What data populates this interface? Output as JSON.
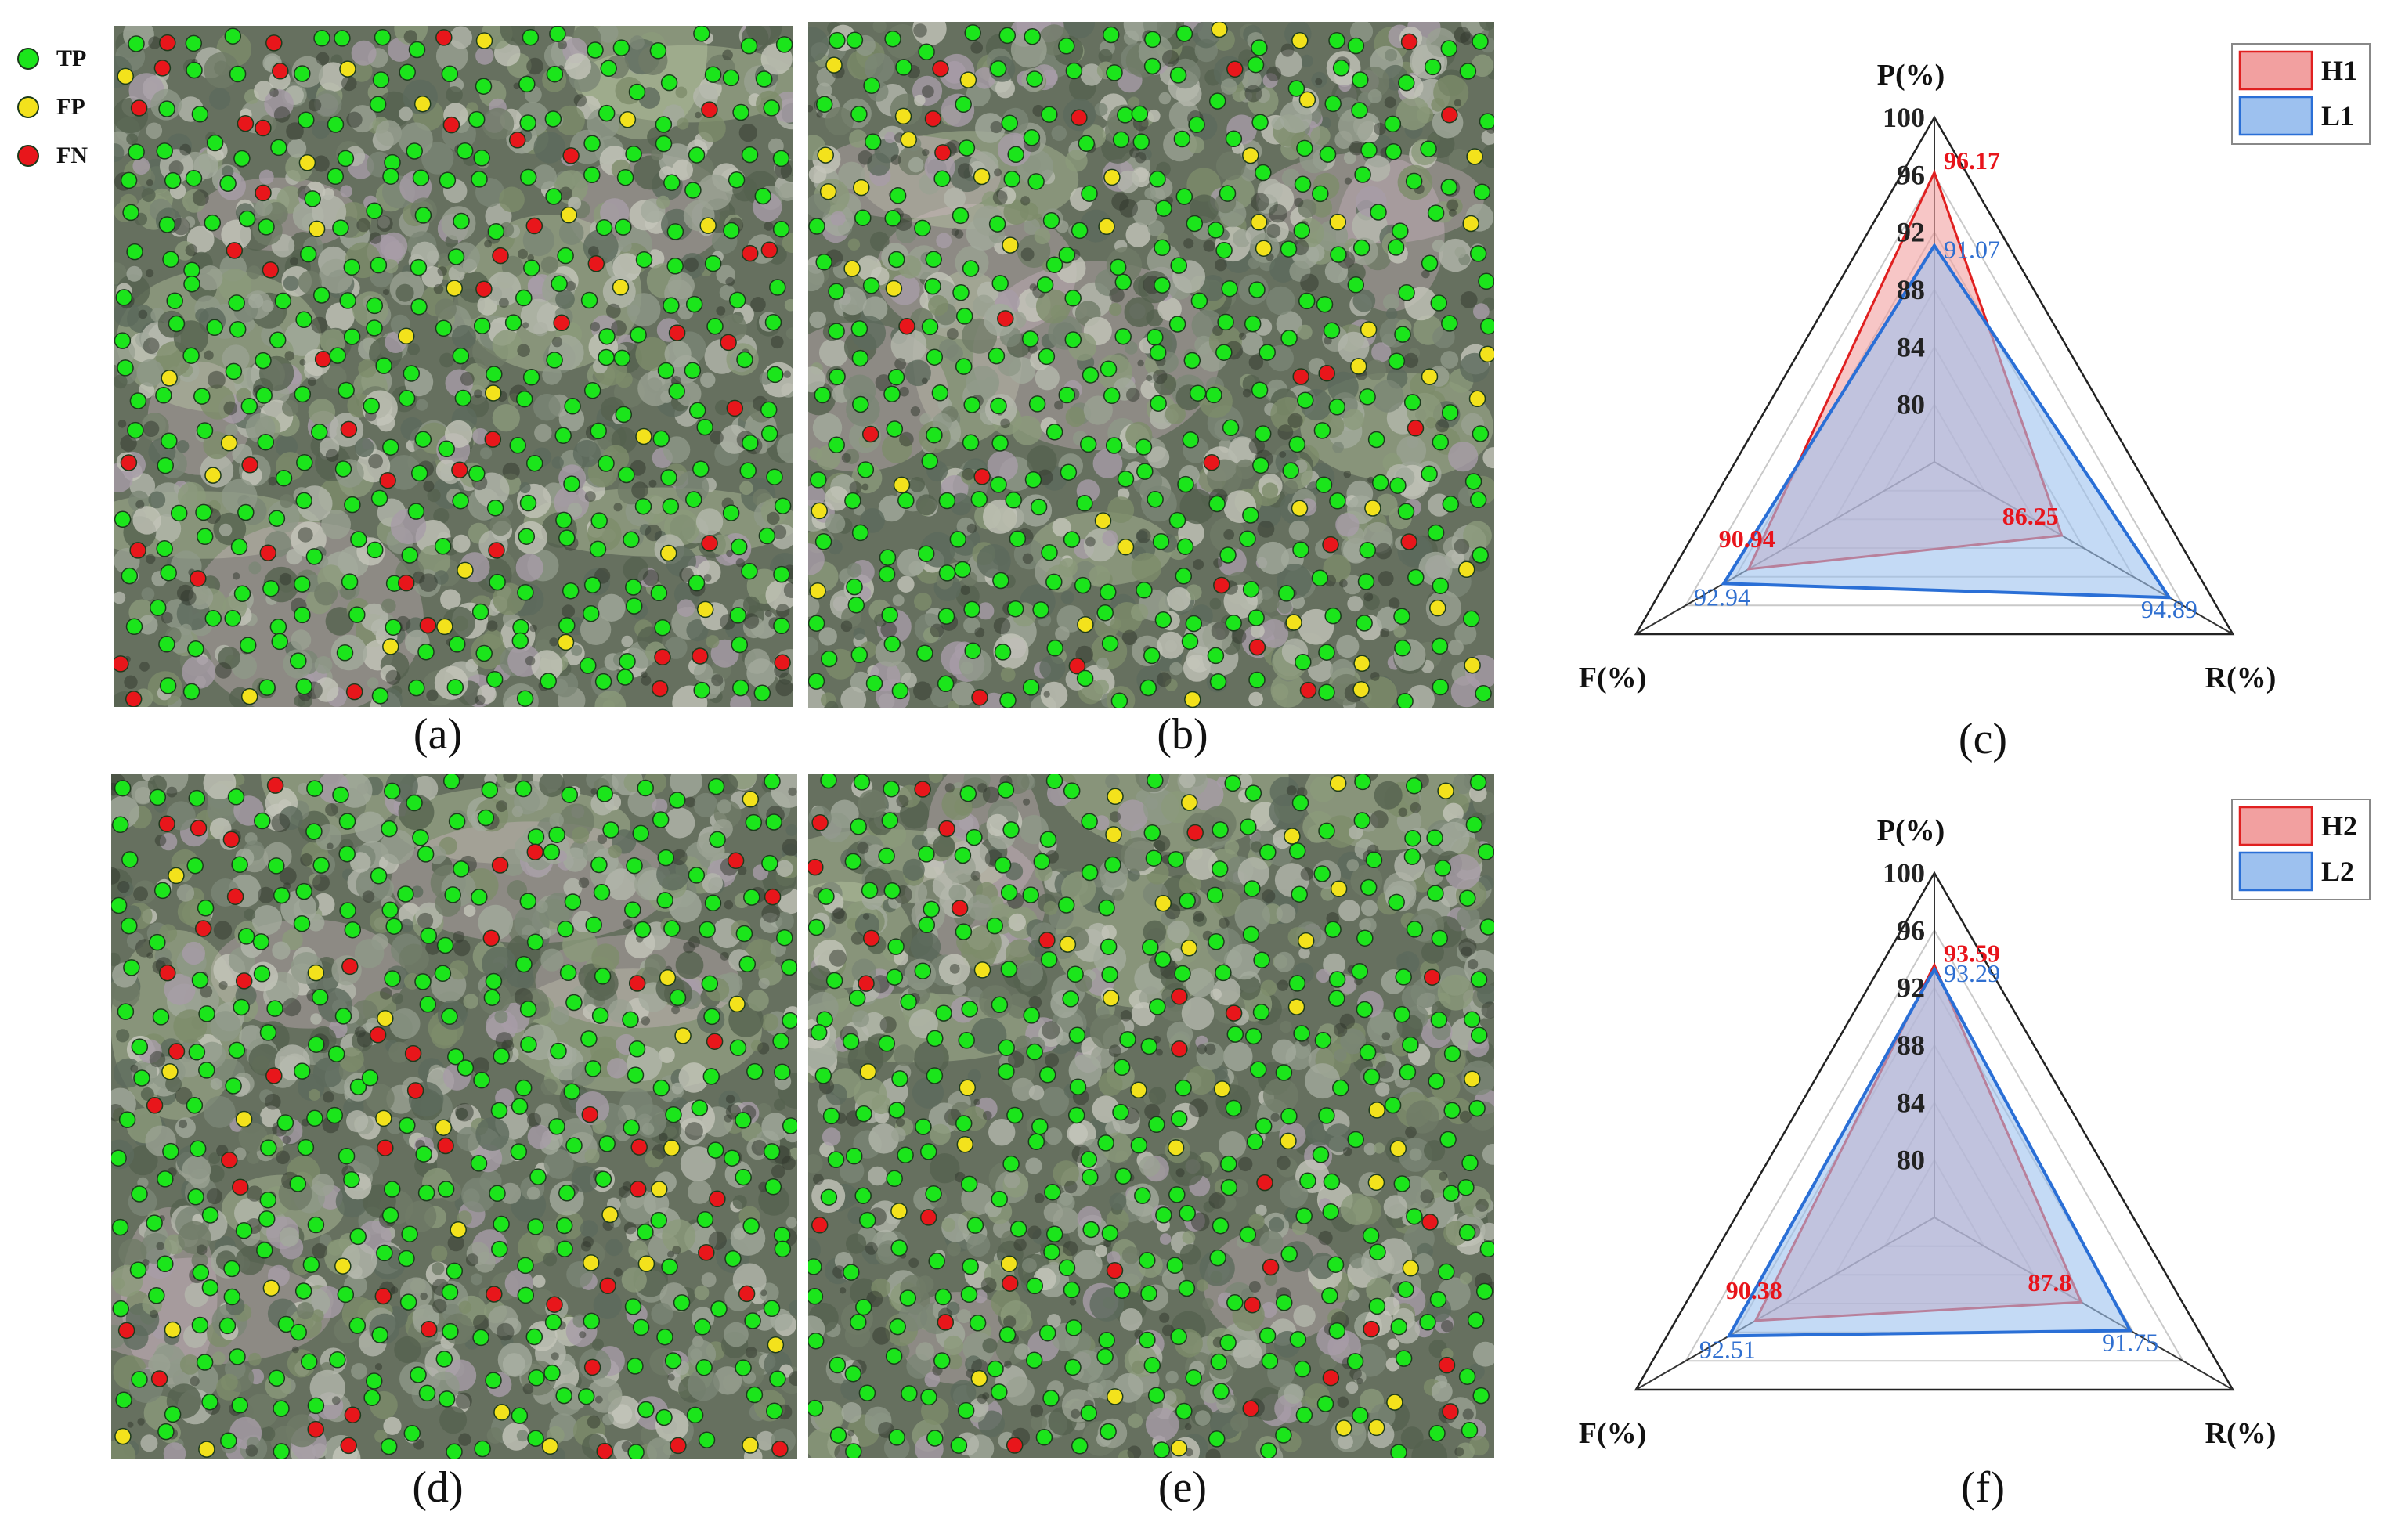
{
  "colors": {
    "tp": "#1be51b",
    "fp": "#f3e21c",
    "fn": "#e8161b",
    "h_stroke": "#e02020",
    "l_stroke": "#2a6fd6"
  },
  "legend": [
    {
      "label": "TP",
      "color": "#1be51b"
    },
    {
      "label": "FP",
      "color": "#f3e21c"
    },
    {
      "label": "FN",
      "color": "#e8161b"
    }
  ],
  "panels": [
    {
      "caption": "(a)",
      "seed": 11,
      "fp": 24,
      "fn": 46
    },
    {
      "caption": "(b)",
      "seed": 23,
      "fp": 42,
      "fn": 22
    },
    {
      "caption": "(d)",
      "seed": 37,
      "fp": 26,
      "fn": 46
    },
    {
      "caption": "(e)",
      "seed": 53,
      "fp": 34,
      "fn": 28
    }
  ],
  "chart_data": [
    {
      "type": "radar",
      "caption": "(c)",
      "axes": [
        "P(%)",
        "R(%)",
        "F(%)"
      ],
      "range": [
        76,
        100
      ],
      "ticks": [
        80,
        84,
        88,
        92,
        96,
        100
      ],
      "tick_labels": [
        "80",
        "84",
        "88",
        "92",
        "96",
        "100"
      ],
      "series": [
        {
          "name": "H1",
          "values": [
            96.17,
            86.25,
            90.94
          ],
          "labels": [
            "96.17",
            "86.25",
            "90.94"
          ]
        },
        {
          "name": "L1",
          "values": [
            91.07,
            94.89,
            92.94
          ],
          "labels": [
            "91.07",
            "94.89",
            "92.94"
          ]
        }
      ]
    },
    {
      "type": "radar",
      "caption": "(f)",
      "axes": [
        "P(%)",
        "R(%)",
        "F(%)"
      ],
      "range": [
        76,
        100
      ],
      "ticks": [
        80,
        84,
        88,
        92,
        96,
        100
      ],
      "tick_labels": [
        "80",
        "84",
        "88",
        "92",
        "96",
        "100"
      ],
      "series": [
        {
          "name": "H2",
          "values": [
            93.59,
            87.8,
            90.38
          ],
          "labels": [
            "93.59",
            "87.8",
            "90.38"
          ]
        },
        {
          "name": "L2",
          "values": [
            93.29,
            91.75,
            92.51
          ],
          "labels": [
            "93.29",
            "91.75",
            "92.51"
          ]
        }
      ]
    }
  ]
}
